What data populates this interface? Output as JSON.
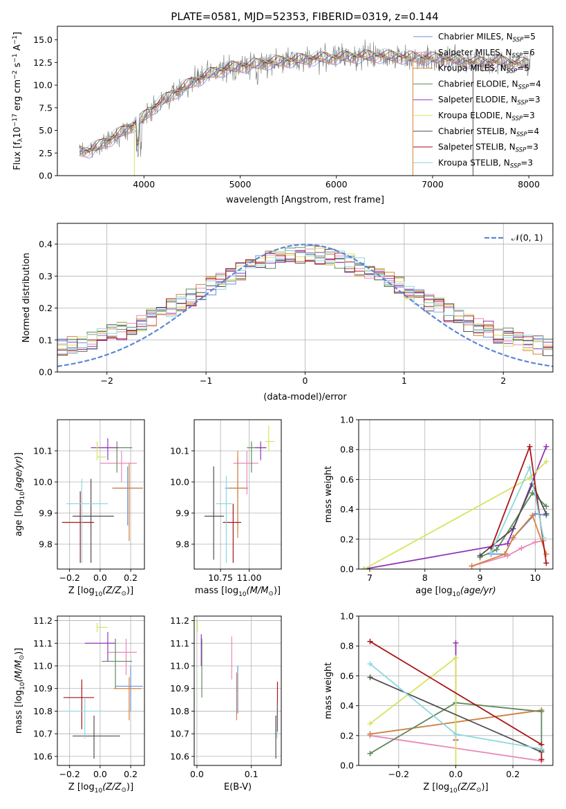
{
  "figure": {
    "title": "PLATE=0581, MJD=52353, FIBERID=0319, z=0.144"
  },
  "series_styles": [
    {
      "name": "Chabrier MILES",
      "nssp": "5",
      "color": "#6a8fd8"
    },
    {
      "name": "Salpeter MILES",
      "nssp": "6",
      "color": "#e888b8"
    },
    {
      "name": "Kroupa MILES",
      "nssp": "5",
      "color": "#d9813a"
    },
    {
      "name": "Chabrier ELODIE",
      "nssp": "4",
      "color": "#5f8a5e"
    },
    {
      "name": "Salpeter ELODIE",
      "nssp": "3",
      "color": "#9035b8"
    },
    {
      "name": "Kroupa ELODIE",
      "nssp": "3",
      "color": "#d6e35e"
    },
    {
      "name": "Chabrier STELIB",
      "nssp": "4",
      "color": "#4e4e4e"
    },
    {
      "name": "Salpeter STELIB",
      "nssp": "3",
      "color": "#a81418"
    },
    {
      "name": "Kroupa STELIB",
      "nssp": "3",
      "color": "#8ad8e0"
    }
  ],
  "chart_data": [
    {
      "id": "spectrum",
      "type": "line",
      "title": "PLATE=0581, MJD=52353, FIBERID=0319, z=0.144",
      "xlabel": "wavelength [Angstrom, rest frame]",
      "ylabel": "Flux [f",
      "xlim": [
        3100,
        8250
      ],
      "ylim": [
        0,
        16.5
      ],
      "xticks": [
        4000,
        5000,
        6000,
        7000,
        8000
      ],
      "yticks": [
        0.0,
        2.5,
        5.0,
        7.5,
        10.0,
        12.5,
        15.0
      ],
      "legend": "upper right",
      "data_color": "#808080",
      "continuum_x": [
        3330,
        3450,
        3550,
        3650,
        3800,
        3950,
        4100,
        4300,
        4500,
        4700,
        4900,
        5100,
        5300,
        5500,
        5700,
        5900,
        6100,
        6300,
        6500,
        6700,
        6900,
        7100,
        7300,
        7500,
        7700,
        7900,
        8020
      ],
      "continuum_y": [
        2.7,
        2.8,
        3.4,
        4.0,
        5.0,
        6.0,
        7.5,
        9.0,
        10.3,
        11.3,
        11.9,
        12.2,
        12.5,
        12.7,
        12.9,
        13.0,
        13.1,
        13.2,
        13.2,
        13.1,
        13.0,
        12.9,
        12.7,
        12.5,
        12.6,
        12.4,
        12.3
      ]
    },
    {
      "id": "residuals",
      "type": "histogram",
      "xlabel": "(data-model)/error",
      "ylabel": "Normed distribution",
      "xlim": [
        -2.5,
        2.5
      ],
      "ylim": [
        0,
        0.465
      ],
      "xticks": [
        -2,
        -1,
        0,
        1,
        2
      ],
      "xticklabels": [
        "−2",
        "−1",
        "0",
        "1",
        "2"
      ],
      "yticks": [
        0.0,
        0.1,
        0.2,
        0.3,
        0.4
      ],
      "legend": "upper right",
      "legend_label": "𝒩(0, 1)",
      "gauss_color": "#5b86d6",
      "bins": {
        "start": -2.5,
        "width": 0.1,
        "count": 50
      }
    },
    {
      "id": "age-vs-Z",
      "type": "scatter",
      "xlabel": "Z [log",
      "ylabel": "age  [log",
      "xlim": [
        -0.28,
        0.29
      ],
      "ylim": [
        9.72,
        10.2
      ],
      "xticks": [
        -0.2,
        0.0,
        0.2
      ],
      "xticklabels": [
        "−0.2",
        "0.0",
        "0.2"
      ],
      "yticks": [
        9.8,
        9.9,
        10.0,
        10.1
      ],
      "points": [
        {
          "s": 0,
          "x": 0.18,
          "y": 9.98,
          "xerr": [
            0.1,
            0.1
          ],
          "yerr": [
            0.12,
            0.07
          ]
        },
        {
          "s": 1,
          "x": 0.14,
          "y": 10.06,
          "xerr": [
            0.14,
            0.1
          ],
          "yerr": [
            0.06,
            0.04
          ]
        },
        {
          "s": 2,
          "x": 0.19,
          "y": 9.98,
          "xerr": [
            0.11,
            0.09
          ],
          "yerr": [
            0.17,
            0.08
          ]
        },
        {
          "s": 3,
          "x": 0.11,
          "y": 10.11,
          "xerr": [
            0.1,
            0.1
          ],
          "yerr": [
            0.08,
            0.02
          ]
        },
        {
          "s": 4,
          "x": 0.05,
          "y": 10.11,
          "xerr": [
            0.11,
            0.07
          ],
          "yerr": [
            0.04,
            0.03
          ]
        },
        {
          "s": 5,
          "x": -0.02,
          "y": 10.08,
          "xerr": [
            0.0,
            0.06
          ],
          "yerr": [
            0.01,
            0.05
          ]
        },
        {
          "s": 6,
          "x": -0.06,
          "y": 9.89,
          "xerr": [
            0.12,
            0.15
          ],
          "yerr": [
            0.15,
            0.12
          ]
        },
        {
          "s": 7,
          "x": -0.13,
          "y": 9.87,
          "xerr": [
            0.12,
            0.09
          ],
          "yerr": [
            0.13,
            0.1
          ]
        },
        {
          "s": 8,
          "x": -0.12,
          "y": 9.93,
          "xerr": [
            0.1,
            0.17
          ],
          "yerr": [
            0.19,
            0.08
          ]
        }
      ]
    },
    {
      "id": "age-vs-mass",
      "type": "scatter",
      "xlabel": "mass [log",
      "ylabel": "",
      "xlim": [
        10.52,
        11.28
      ],
      "ylim": [
        9.72,
        10.2
      ],
      "xticks": [
        10.75,
        11.0
      ],
      "xticklabels": [
        "10.75",
        "11.00"
      ],
      "yticks": [
        9.8,
        9.9,
        10.0,
        10.1
      ],
      "points": [
        {
          "s": 0,
          "x": 10.9,
          "y": 9.98,
          "xerr": [
            0.11,
            0.09
          ],
          "yerr": [
            0.14,
            0.1
          ]
        },
        {
          "s": 1,
          "x": 10.98,
          "y": 10.06,
          "xerr": [
            0.12,
            0.1
          ],
          "yerr": [
            0.1,
            0.04
          ]
        },
        {
          "s": 2,
          "x": 10.9,
          "y": 9.98,
          "xerr": [
            0.07,
            0.08
          ],
          "yerr": [
            0.16,
            0.12
          ]
        },
        {
          "s": 3,
          "x": 11.02,
          "y": 10.11,
          "xerr": [
            0.04,
            0.13
          ],
          "yerr": [
            0.08,
            0.02
          ]
        },
        {
          "s": 4,
          "x": 11.1,
          "y": 10.11,
          "xerr": [
            0.05,
            0.05
          ],
          "yerr": [
            0.04,
            0.02
          ]
        },
        {
          "s": 5,
          "x": 11.17,
          "y": 10.13,
          "xerr": [
            0.03,
            0.05
          ],
          "yerr": [
            0.03,
            0.05
          ]
        },
        {
          "s": 6,
          "x": 10.69,
          "y": 9.89,
          "xerr": [
            0.08,
            0.09
          ],
          "yerr": [
            0.14,
            0.16
          ]
        },
        {
          "s": 7,
          "x": 10.86,
          "y": 9.87,
          "xerr": [
            0.09,
            0.07
          ],
          "yerr": [
            0.13,
            0.06
          ]
        },
        {
          "s": 8,
          "x": 10.8,
          "y": 9.93,
          "xerr": [
            0.09,
            0.05
          ],
          "yerr": [
            0.19,
            0.09
          ]
        }
      ]
    },
    {
      "id": "weight-vs-age",
      "type": "line",
      "xlabel": "age  [log",
      "ylabel": "mass weight",
      "xlim": [
        6.8,
        10.32
      ],
      "ylim": [
        0,
        1.0
      ],
      "xticks": [
        7,
        8,
        9,
        10
      ],
      "yticks": [
        0.0,
        0.2,
        0.4,
        0.6,
        0.8,
        1.0
      ],
      "series": [
        {
          "s": 0,
          "x": [
            9.2,
            9.45,
            9.6,
            10.0,
            10.2
          ],
          "y": [
            0.1,
            0.1,
            0.21,
            0.37,
            0.36
          ]
        },
        {
          "s": 1,
          "x": [
            8.85,
            9.5,
            9.75,
            10.0,
            10.15
          ],
          "y": [
            0.02,
            0.09,
            0.14,
            0.18,
            0.19
          ]
        },
        {
          "s": 2,
          "x": [
            8.85,
            9.45,
            9.6,
            9.95,
            10.2
          ],
          "y": [
            0.02,
            0.1,
            0.21,
            0.36,
            0.1
          ]
        },
        {
          "s": 3,
          "x": [
            9.0,
            9.3,
            9.95,
            10.2
          ],
          "y": [
            0.08,
            0.13,
            0.51,
            0.42
          ]
        },
        {
          "s": 4,
          "x": [
            6.9,
            9.5,
            10.2
          ],
          "y": [
            0.0,
            0.17,
            0.82
          ]
        },
        {
          "s": 5,
          "x": [
            6.9,
            9.9,
            10.2
          ],
          "y": [
            0.0,
            0.61,
            0.72
          ]
        },
        {
          "s": 6,
          "x": [
            9.0,
            9.6,
            9.95,
            10.2
          ],
          "y": [
            0.09,
            0.27,
            0.57,
            0.37
          ]
        },
        {
          "s": 7,
          "x": [
            9.2,
            9.9,
            10.2
          ],
          "y": [
            0.14,
            0.82,
            0.04
          ]
        },
        {
          "s": 8,
          "x": [
            9.2,
            9.9,
            10.15
          ],
          "y": [
            0.11,
            0.68,
            0.21
          ]
        }
      ]
    },
    {
      "id": "mass-vs-Z",
      "type": "scatter",
      "xlabel": "Z [log",
      "ylabel": "mass [log",
      "xlim": [
        -0.28,
        0.29
      ],
      "ylim": [
        10.56,
        11.22
      ],
      "xticks": [
        -0.2,
        0.0,
        0.2
      ],
      "xticklabels": [
        "−0.2",
        "0.0",
        "0.2"
      ],
      "yticks": [
        10.6,
        10.7,
        10.8,
        10.9,
        11.0,
        11.1,
        11.2
      ],
      "points": [
        {
          "s": 0,
          "x": 0.2,
          "y": 10.91,
          "xerr": [
            0.1,
            0.08
          ],
          "yerr": [
            0.11,
            0.09
          ]
        },
        {
          "s": 1,
          "x": 0.17,
          "y": 11.06,
          "xerr": [
            0.12,
            0.07
          ],
          "yerr": [
            0.1,
            0.06
          ]
        },
        {
          "s": 2,
          "x": 0.19,
          "y": 10.9,
          "xerr": [
            0.1,
            0.08
          ],
          "yerr": [
            0.14,
            0.05
          ]
        },
        {
          "s": 3,
          "x": 0.1,
          "y": 11.02,
          "xerr": [
            0.09,
            0.11
          ],
          "yerr": [
            0.12,
            0.1
          ]
        },
        {
          "s": 4,
          "x": 0.05,
          "y": 11.1,
          "xerr": [
            0.15,
            0.05
          ],
          "yerr": [
            0.08,
            0.05
          ]
        },
        {
          "s": 5,
          "x": -0.02,
          "y": 11.17,
          "xerr": [
            0.0,
            0.07
          ],
          "yerr": [
            0.02,
            0.02
          ]
        },
        {
          "s": 6,
          "x": -0.04,
          "y": 10.69,
          "xerr": [
            0.14,
            0.17
          ],
          "yerr": [
            0.1,
            0.09
          ]
        },
        {
          "s": 7,
          "x": -0.12,
          "y": 10.86,
          "xerr": [
            0.12,
            0.08
          ],
          "yerr": [
            0.14,
            0.08
          ]
        },
        {
          "s": 8,
          "x": -0.1,
          "y": 10.8,
          "xerr": [
            0.12,
            0.13
          ],
          "yerr": [
            0.12,
            0.06
          ]
        }
      ]
    },
    {
      "id": "mass-vs-ebv",
      "type": "scatter",
      "xlabel": "E(B-V)",
      "ylabel": "",
      "xlim": [
        -0.005,
        0.155
      ],
      "ylim": [
        10.56,
        11.22
      ],
      "xticks": [
        0.0,
        0.1
      ],
      "xticklabels": [
        "0.0",
        "0.1"
      ],
      "yticks": [
        10.6,
        10.7,
        10.8,
        10.9,
        11.0,
        11.1,
        11.2
      ],
      "points": [
        {
          "s": 0,
          "x": 0.075,
          "y": 10.91,
          "yerr": [
            0.12,
            0.09
          ]
        },
        {
          "s": 1,
          "x": 0.064,
          "y": 11.06,
          "yerr": [
            0.12,
            0.07
          ]
        },
        {
          "s": 2,
          "x": 0.073,
          "y": 10.9,
          "yerr": [
            0.14,
            0.07
          ]
        },
        {
          "s": 3,
          "x": 0.009,
          "y": 11.02,
          "yerr": [
            0.16,
            0.1
          ]
        },
        {
          "s": 4,
          "x": 0.008,
          "y": 11.1,
          "yerr": [
            0.1,
            0.04
          ]
        },
        {
          "s": 5,
          "x": 0.001,
          "y": 11.17,
          "yerr": [
            0.02,
            0.03
          ]
        },
        {
          "s": 6,
          "x": 0.145,
          "y": 10.69,
          "yerr": [
            0.1,
            0.09
          ]
        },
        {
          "s": 7,
          "x": 0.148,
          "y": 10.86,
          "yerr": [
            0.15,
            0.07
          ]
        },
        {
          "s": 8,
          "x": 0.147,
          "y": 10.78,
          "yerr": [
            0.1,
            0.06
          ]
        }
      ]
    },
    {
      "id": "weight-vs-Z",
      "type": "line",
      "xlabel": "Z [log",
      "ylabel": "mass weight",
      "xlim": [
        -0.34,
        0.34
      ],
      "ylim": [
        0,
        1.0
      ],
      "xticks": [
        -0.2,
        0.0,
        0.2
      ],
      "xticklabels": [
        "−0.2",
        "0.0",
        "0.2"
      ],
      "yticks": [
        0.0,
        0.2,
        0.4,
        0.6,
        0.8,
        1.0
      ],
      "series": [
        {
          "s": 0,
          "x": [
            -0.3,
            0.3
          ],
          "y": [
            0.21,
            0.37
          ]
        },
        {
          "s": 1,
          "x": [
            -0.3,
            0.3
          ],
          "y": [
            0.2,
            0.03
          ]
        },
        {
          "s": 2,
          "x": [
            -0.3,
            0.3
          ],
          "y": [
            0.21,
            0.37
          ]
        },
        {
          "s": 3,
          "x": [
            -0.3,
            0.0,
            0.3,
            0.3
          ],
          "y": [
            0.08,
            0.42,
            0.36,
            0.1
          ]
        },
        {
          "s": 4,
          "x": [
            0.0,
            0.0
          ],
          "y": [
            0.82,
            0.17
          ]
        },
        {
          "s": 5,
          "x": [
            -0.3,
            0.0,
            0.0
          ],
          "y": [
            0.28,
            0.72,
            0.0
          ]
        },
        {
          "s": 6,
          "x": [
            -0.3,
            0.3
          ],
          "y": [
            0.59,
            0.09
          ]
        },
        {
          "s": 7,
          "x": [
            -0.3,
            0.3,
            0.3
          ],
          "y": [
            0.83,
            0.14,
            0.04
          ]
        },
        {
          "s": 8,
          "x": [
            -0.3,
            0.0,
            0.3
          ],
          "y": [
            0.68,
            0.21,
            0.11
          ]
        }
      ]
    }
  ]
}
